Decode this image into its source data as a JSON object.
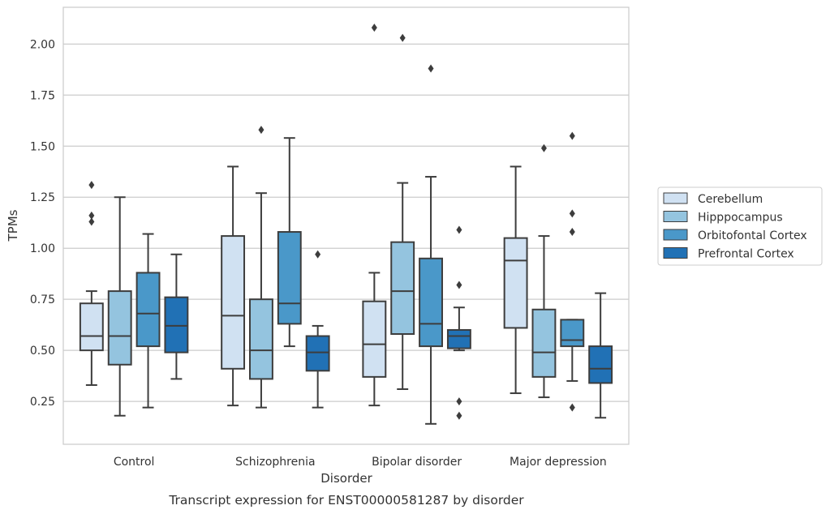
{
  "chart_data": {
    "type": "boxplot",
    "title": "Transcript expression for ENST00000581287 by disorder",
    "xlabel": "Disorder",
    "ylabel": "TPMs",
    "ylim": [
      0.04,
      2.18
    ],
    "yticks": [
      "0.25",
      "0.50",
      "0.75",
      "1.00",
      "1.25",
      "1.50",
      "1.75",
      "2.00"
    ],
    "grid": true,
    "legend_position": "right",
    "categories": [
      "Control",
      "Schizophrenia",
      "Bipolar disorder",
      "Major depression"
    ],
    "series": [
      {
        "name": "Cerebellum",
        "color": "#d0e1f2",
        "boxes": [
          {
            "whislo": 0.33,
            "q1": 0.5,
            "med": 0.57,
            "q3": 0.73,
            "whishi": 0.79,
            "fliers": [
              1.13,
              1.16,
              1.31
            ]
          },
          {
            "whislo": 0.23,
            "q1": 0.41,
            "med": 0.67,
            "q3": 1.06,
            "whishi": 1.4,
            "fliers": []
          },
          {
            "whislo": 0.23,
            "q1": 0.37,
            "med": 0.53,
            "q3": 0.74,
            "whishi": 0.88,
            "fliers": [
              2.08
            ]
          },
          {
            "whislo": 0.29,
            "q1": 0.61,
            "med": 0.94,
            "q3": 1.05,
            "whishi": 1.4,
            "fliers": []
          }
        ]
      },
      {
        "name": "Hipppocampus",
        "color": "#94c4df",
        "boxes": [
          {
            "whislo": 0.18,
            "q1": 0.43,
            "med": 0.57,
            "q3": 0.79,
            "whishi": 1.25,
            "fliers": []
          },
          {
            "whislo": 0.22,
            "q1": 0.36,
            "med": 0.5,
            "q3": 0.75,
            "whishi": 1.27,
            "fliers": [
              1.58
            ]
          },
          {
            "whislo": 0.31,
            "q1": 0.58,
            "med": 0.79,
            "q3": 1.03,
            "whishi": 1.32,
            "fliers": [
              2.03
            ]
          },
          {
            "whislo": 0.27,
            "q1": 0.37,
            "med": 0.49,
            "q3": 0.7,
            "whishi": 1.06,
            "fliers": [
              1.49
            ]
          }
        ]
      },
      {
        "name": "Orbitofontal Cortex",
        "color": "#4a98c9",
        "boxes": [
          {
            "whislo": 0.22,
            "q1": 0.52,
            "med": 0.68,
            "q3": 0.88,
            "whishi": 1.07,
            "fliers": []
          },
          {
            "whislo": 0.52,
            "q1": 0.63,
            "med": 0.73,
            "q3": 1.08,
            "whishi": 1.54,
            "fliers": []
          },
          {
            "whislo": 0.14,
            "q1": 0.52,
            "med": 0.63,
            "q3": 0.95,
            "whishi": 1.35,
            "fliers": [
              1.88
            ]
          },
          {
            "whislo": 0.35,
            "q1": 0.52,
            "med": 0.55,
            "q3": 0.65,
            "whishi": 0.65,
            "fliers": [
              0.22,
              1.08,
              1.17,
              1.55
            ]
          }
        ]
      },
      {
        "name": "Prefrontal Cortex",
        "color": "#2171b5",
        "boxes": [
          {
            "whislo": 0.36,
            "q1": 0.49,
            "med": 0.62,
            "q3": 0.76,
            "whishi": 0.97,
            "fliers": []
          },
          {
            "whislo": 0.22,
            "q1": 0.4,
            "med": 0.49,
            "q3": 0.57,
            "whishi": 0.62,
            "fliers": [
              0.97
            ]
          },
          {
            "whislo": 0.5,
            "q1": 0.51,
            "med": 0.57,
            "q3": 0.6,
            "whishi": 0.71,
            "fliers": [
              0.18,
              0.25,
              0.82,
              1.09
            ]
          },
          {
            "whislo": 0.17,
            "q1": 0.34,
            "med": 0.41,
            "q3": 0.52,
            "whishi": 0.78,
            "fliers": []
          }
        ]
      }
    ]
  }
}
